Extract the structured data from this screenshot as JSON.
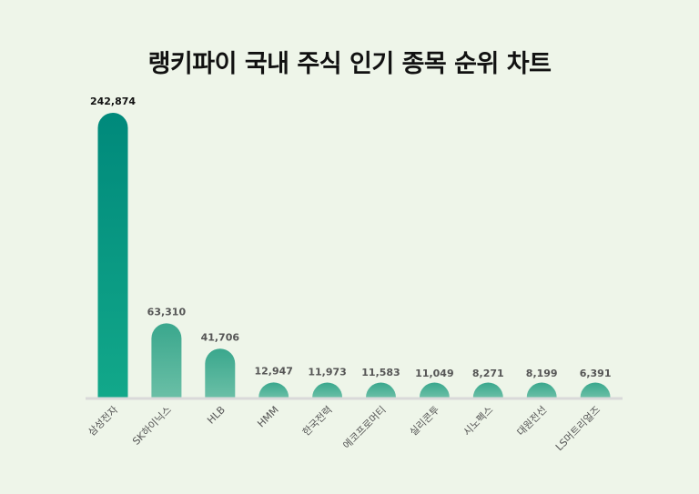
{
  "chart_data": {
    "type": "bar",
    "title": "랭키파이 국내 주식 인기 종목 순위 차트",
    "xlabel": "",
    "ylabel": "",
    "categories": [
      "삼성전자",
      "SK하이닉스",
      "HLB",
      "HMM",
      "한국전력",
      "에코프로머티",
      "실리콘투",
      "시노펙스",
      "대원전선",
      "LS머트리얼즈"
    ],
    "values": [
      242874,
      63310,
      41706,
      12947,
      11973,
      11583,
      11049,
      8271,
      8199,
      6391
    ],
    "value_labels": [
      "242,874",
      "63,310",
      "41,706",
      "12,947",
      "11,973",
      "11,583",
      "11,049",
      "8,271",
      "8,199",
      "6,391"
    ],
    "ylim": [
      0,
      242874
    ],
    "grid": false,
    "legend": "none",
    "colors": {
      "first_bar_top": "#00897b",
      "first_bar_bottom": "#12a88a",
      "bar_top": "#3aa78d",
      "bar_bottom": "#6abfa6",
      "baseline": "#d9d9d9",
      "background": "#eef5e9"
    }
  }
}
